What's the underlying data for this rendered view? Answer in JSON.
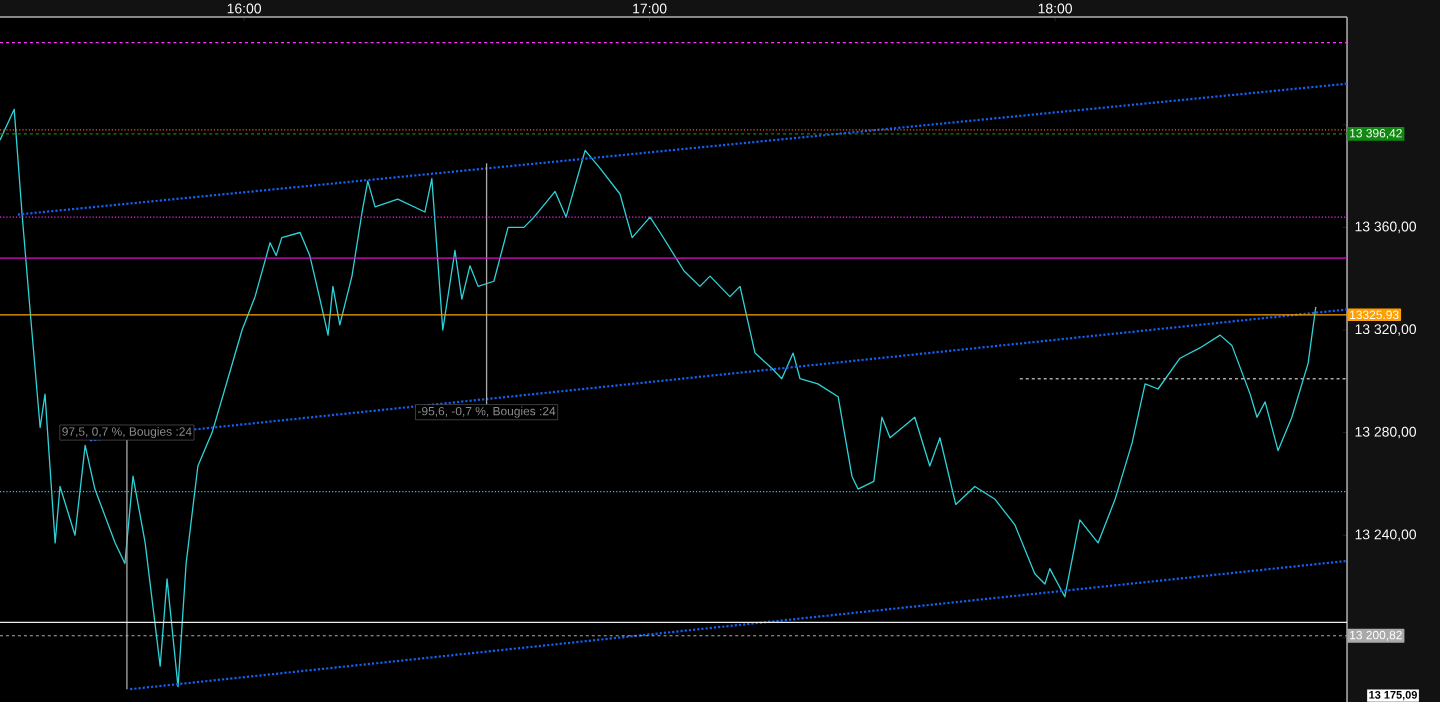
{
  "chart_data": {
    "type": "line",
    "xlim": [
      15.398,
      18.72
    ],
    "ylim": [
      13175,
      13442
    ],
    "xticks": [
      {
        "value": 16,
        "label": "16:00"
      },
      {
        "value": 17,
        "label": "17:00"
      },
      {
        "value": 18,
        "label": "18:00"
      }
    ],
    "yticks": [
      {
        "value": 13200,
        "label": null
      },
      {
        "value": 13240,
        "label": "13 240,00"
      },
      {
        "value": 13280,
        "label": "13 280,00"
      },
      {
        "value": 13320,
        "label": "13 320,00"
      },
      {
        "value": 13360,
        "label": "13 360,00"
      },
      {
        "value": 13400,
        "label": null
      }
    ],
    "marker": "none",
    "series": [
      {
        "color": "#2ed3d8",
        "line_style": "solid",
        "x": [
          15.398,
          15.433,
          15.452,
          15.472,
          15.497,
          15.509,
          15.534,
          15.546,
          15.583,
          15.608,
          15.632,
          15.682,
          15.706,
          15.726,
          15.756,
          15.793,
          15.81,
          15.837,
          15.857,
          15.886,
          15.921,
          15.96,
          15.995,
          16.027,
          16.064,
          16.079,
          16.093,
          16.138,
          16.162,
          16.187,
          16.207,
          16.219,
          16.236,
          16.266,
          16.291,
          16.305,
          16.323,
          16.379,
          16.446,
          16.463,
          16.49,
          16.52,
          16.537,
          16.557,
          16.577,
          16.616,
          16.651,
          16.69,
          16.715,
          16.767,
          16.794,
          16.841,
          16.878,
          16.927,
          16.957,
          17.001,
          17.026,
          17.085,
          17.124,
          17.149,
          17.198,
          17.223,
          17.26,
          17.302,
          17.326,
          17.354,
          17.371,
          17.415,
          17.465,
          17.499,
          17.514,
          17.553,
          17.573,
          17.593,
          17.654,
          17.691,
          17.716,
          17.755,
          17.802,
          17.852,
          17.901,
          17.95,
          17.975,
          17.987,
          18.024,
          18.061,
          18.106,
          18.148,
          18.19,
          18.222,
          18.254,
          18.308,
          18.357,
          18.407,
          18.436,
          18.481,
          18.498,
          18.518,
          18.55,
          18.584,
          18.624,
          18.643
        ],
        "values": [
          13394,
          13406,
          13366,
          13328,
          13282,
          13295,
          13237,
          13259,
          13240,
          13275,
          13258,
          13237,
          13229,
          13263,
          13237,
          13189,
          13223,
          13181,
          13229,
          13267,
          13280,
          13301,
          13320,
          13333,
          13354,
          13349,
          13356,
          13358,
          13349,
          13332,
          13318,
          13337,
          13322,
          13341,
          13366,
          13378,
          13368,
          13371,
          13366,
          13379,
          13320,
          13351,
          13332,
          13345,
          13337,
          13339,
          13360,
          13360,
          13364,
          13374,
          13364,
          13390,
          13383,
          13373,
          13356,
          13364,
          13358,
          13343,
          13337,
          13341,
          13333,
          13337,
          13311,
          13305,
          13301,
          13311,
          13301,
          13299,
          13294,
          13263,
          13258,
          13261,
          13286,
          13278,
          13286,
          13267,
          13278,
          13252,
          13259,
          13254,
          13244,
          13225,
          13221,
          13227,
          13216,
          13246,
          13237,
          13254,
          13276,
          13299,
          13297,
          13309,
          13313,
          13318,
          13314,
          13295,
          13286,
          13292,
          13273,
          13286,
          13307,
          13329
        ]
      },
      {
        "color": "#1560f0",
        "line_style": "dotted",
        "x": [
          15.442,
          18.72
        ],
        "values": [
          13365,
          13416
        ]
      },
      {
        "color": "#1560f0",
        "line_style": "dotted",
        "x": [
          15.62,
          18.72
        ],
        "values": [
          13277,
          13328
        ]
      },
      {
        "color": "#1560f0",
        "line_style": "dotted",
        "x": [
          15.719,
          18.72
        ],
        "values": [
          13180,
          13230
        ]
      },
      {
        "color": "#aaaaaa",
        "line_style": "dashed",
        "x": [
          17.913,
          18.72
        ],
        "values": [
          13301,
          13301
        ]
      },
      {
        "color": "#aaaaaa",
        "line_style": "solid",
        "x": [
          15.711,
          15.711
        ],
        "values": [
          13180,
          13277
        ]
      },
      {
        "color": "#aaaaaa",
        "line_style": "solid",
        "x": [
          16.598,
          16.598
        ],
        "values": [
          13385,
          13291
        ]
      }
    ],
    "ref_lines": [
      {
        "axis": "y",
        "value": 13432,
        "color": "#ff33ff",
        "line_style": "dashed"
      },
      {
        "axis": "y",
        "value": 13398,
        "color": "#ff5a1a",
        "line_style": "dotted"
      },
      {
        "axis": "y",
        "value": 13396.42,
        "label": "13 396,42",
        "color": "#118811",
        "line_style": "dashed"
      },
      {
        "axis": "y",
        "value": 13364,
        "color": "#ff22ff",
        "line_style": "dotted"
      },
      {
        "axis": "y",
        "value": 13348,
        "color": "#dd11cc",
        "line_style": "solid"
      },
      {
        "axis": "y",
        "value": 13325.93,
        "label": "13325.93",
        "color": "#ffa000",
        "line_style": "solid"
      },
      {
        "axis": "y",
        "value": 13257,
        "color": "#22ccee",
        "line_style": "dotted"
      },
      {
        "axis": "y",
        "value": 13206,
        "color": "#eeeeee",
        "line_style": "solid"
      },
      {
        "axis": "y",
        "value": 13200.82,
        "label": "13 200,82",
        "color": "#aaaaaa",
        "line_style": "dashed"
      }
    ],
    "annotations": [
      {
        "text": "97,5, 0,7 %, Bougies :24",
        "x": 15.711,
        "y": 13277
      },
      {
        "text": "-95,6, -0,7 %, Bougies :24",
        "x": 16.598,
        "y": 13291
      },
      "13 175,09"
    ]
  }
}
